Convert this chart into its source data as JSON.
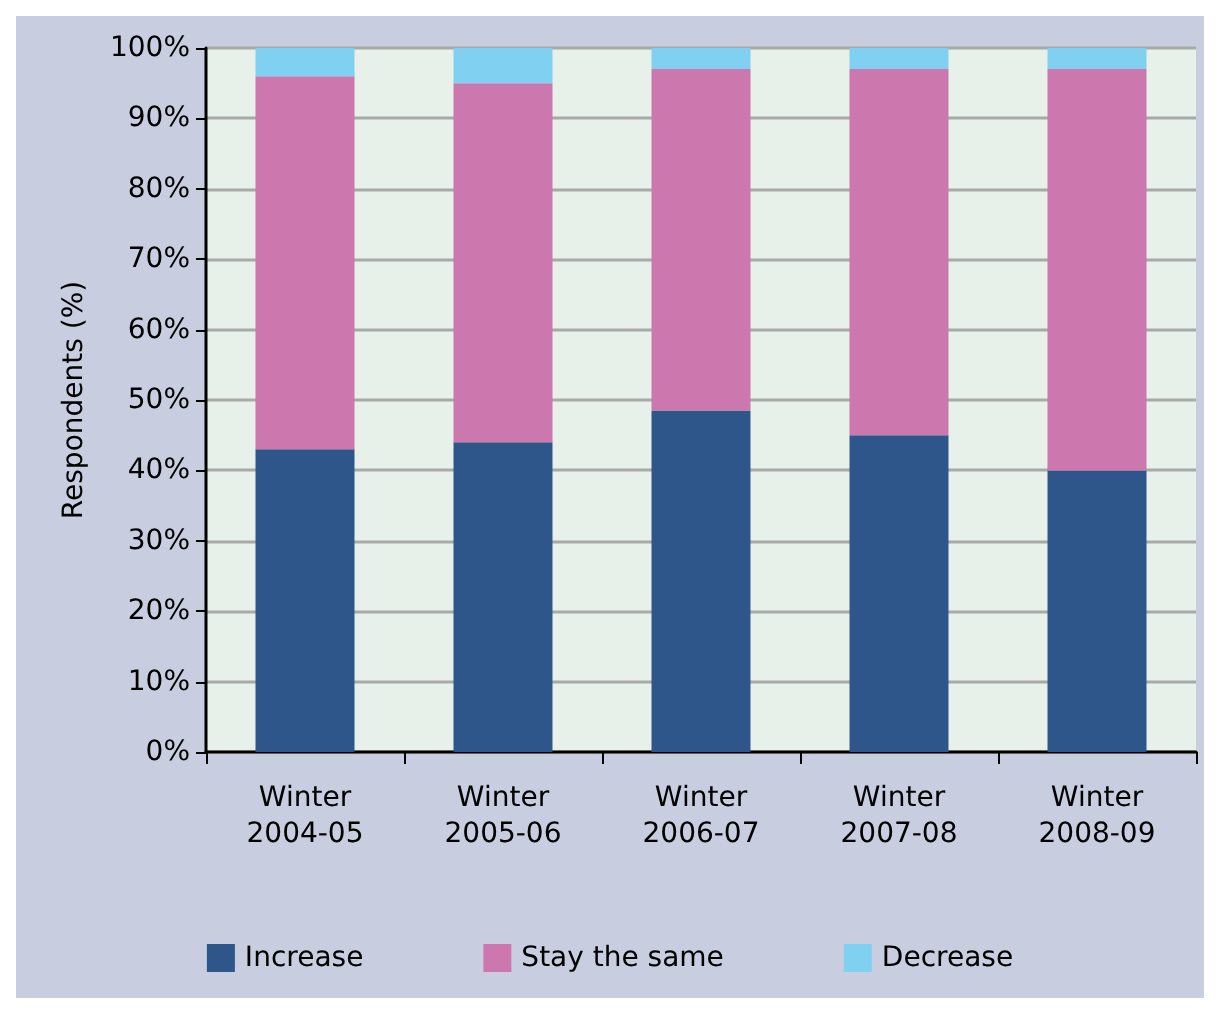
{
  "chart_data": {
    "type": "bar",
    "stacked": true,
    "ylabel": "Respondents (%)",
    "categories": [
      "Winter\n2004-05",
      "Winter\n2005-06",
      "Winter\n2006-07",
      "Winter\n2007-08",
      "Winter\n2008-09"
    ],
    "series": [
      {
        "name": "Increase",
        "color": "#2e568b",
        "values": [
          43,
          44,
          48.5,
          45,
          40
        ]
      },
      {
        "name": "Stay the same",
        "color": "#cc77ad",
        "values": [
          53,
          51,
          48.5,
          52,
          57
        ]
      },
      {
        "name": "Decrease",
        "color": "#80d0f2",
        "values": [
          4,
          5,
          3,
          3,
          3
        ]
      }
    ],
    "ylim": [
      0,
      100
    ],
    "yticks": [
      {
        "value": 0,
        "label": "0%"
      },
      {
        "value": 10,
        "label": "10%"
      },
      {
        "value": 20,
        "label": "20%"
      },
      {
        "value": 30,
        "label": "30%"
      },
      {
        "value": 40,
        "label": "40%"
      },
      {
        "value": 50,
        "label": "50%"
      },
      {
        "value": 60,
        "label": "60%"
      },
      {
        "value": 70,
        "label": "70%"
      },
      {
        "value": 80,
        "label": "80%"
      },
      {
        "value": 90,
        "label": "90%"
      },
      {
        "value": 100,
        "label": "100%"
      }
    ],
    "grid": "y",
    "legend": "bottom"
  }
}
